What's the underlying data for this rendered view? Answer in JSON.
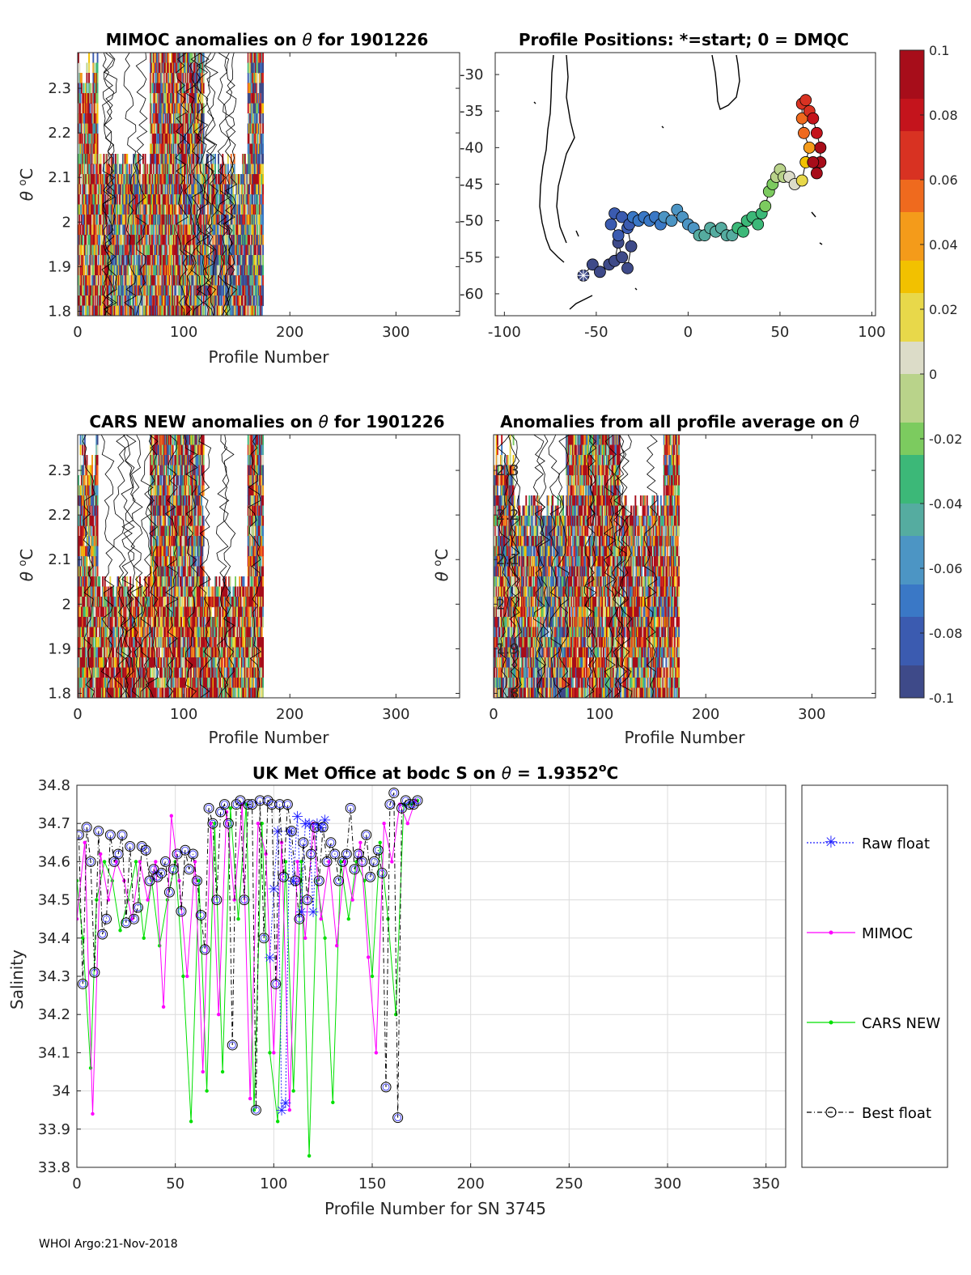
{
  "footer": "WHOI Argo:21-Nov-2018",
  "colorbar": {
    "ticks": [
      "0.1",
      "0.08",
      "0.06",
      "0.04",
      "0.02",
      "0",
      "-0.02",
      "-0.04",
      "-0.06",
      "-0.08",
      "-0.1"
    ],
    "range": [
      -0.1,
      0.1
    ],
    "stops": [
      "#3e4a89",
      "#3b5bb0",
      "#3a78c6",
      "#4c95c4",
      "#55aca0",
      "#3cb878",
      "#7ccb5f",
      "#b9d38a",
      "#dcdcc8",
      "#e8d84a",
      "#f2c100",
      "#f49b1a",
      "#ef6a1e",
      "#d83222",
      "#c4141c",
      "#a70d1a"
    ]
  },
  "chart_data": [
    {
      "id": "mimoc_anom",
      "type": "heatmap",
      "title": "MIMOC anomalies on θ  for 1901226",
      "title_parts": [
        "MIMOC anomalies on ",
        "θ",
        "  for 1901226"
      ],
      "xlabel": "Profile Number",
      "ylabel_parts": [
        "θ ",
        "o",
        "C"
      ],
      "xlim": [
        0,
        360
      ],
      "ylim": [
        1.79,
        2.38
      ],
      "xticks": [
        "0",
        "100",
        "200",
        "300"
      ],
      "yticks": [
        "1.8",
        "1.9",
        "2",
        "2.1",
        "2.2",
        "2.3"
      ],
      "profiles_with_data": [
        0,
        175
      ]
    },
    {
      "id": "positions",
      "type": "scatter",
      "title": "Profile Positions: *=start; 0 = DMQC",
      "xlim": [
        -105,
        102
      ],
      "ylim": [
        -63,
        -27
      ],
      "xticks": [
        "-100",
        "-50",
        "0",
        "50",
        "100"
      ],
      "yticks": [
        "-30",
        "-35",
        "-40",
        "-45",
        "-50",
        "-55",
        "-60"
      ],
      "track": [
        [
          -57,
          -57.5
        ],
        [
          -52,
          -56
        ],
        [
          -48,
          -57
        ],
        [
          -43,
          -56
        ],
        [
          -40,
          -55.5
        ],
        [
          -38,
          -53
        ],
        [
          -36,
          -55
        ],
        [
          -33,
          -56.5
        ],
        [
          -31,
          -53.5
        ],
        [
          -33,
          -51
        ],
        [
          -38,
          -52
        ],
        [
          -42,
          -50.5
        ],
        [
          -40,
          -49
        ],
        [
          -36,
          -49.5
        ],
        [
          -32,
          -50.5
        ],
        [
          -30,
          -49.5
        ],
        [
          -27,
          -50
        ],
        [
          -24,
          -49.5
        ],
        [
          -21,
          -50
        ],
        [
          -18,
          -49.5
        ],
        [
          -15,
          -50.5
        ],
        [
          -13,
          -49.5
        ],
        [
          -9,
          -50
        ],
        [
          -6,
          -48.5
        ],
        [
          -3,
          -49.5
        ],
        [
          0,
          -50.5
        ],
        [
          3,
          -51
        ],
        [
          6,
          -52
        ],
        [
          9,
          -52
        ],
        [
          12,
          -51
        ],
        [
          15,
          -51.5
        ],
        [
          18,
          -51
        ],
        [
          21,
          -52
        ],
        [
          24,
          -52
        ],
        [
          27,
          -51
        ],
        [
          30,
          -51.5
        ],
        [
          32,
          -50
        ],
        [
          35,
          -49.5
        ],
        [
          38,
          -50.5
        ],
        [
          40,
          -49
        ],
        [
          42,
          -48
        ],
        [
          44,
          -46
        ],
        [
          46,
          -45
        ],
        [
          48,
          -44
        ],
        [
          50,
          -43
        ],
        [
          52,
          -44
        ],
        [
          55,
          -44
        ],
        [
          58,
          -45
        ],
        [
          62,
          -44.5
        ],
        [
          64,
          -42
        ],
        [
          66,
          -40
        ],
        [
          63,
          -38
        ],
        [
          62,
          -36
        ],
        [
          62,
          -34
        ],
        [
          64,
          -33.5
        ],
        [
          66,
          -35
        ],
        [
          68,
          -36
        ],
        [
          70,
          -38
        ],
        [
          72,
          -40
        ],
        [
          72,
          -42
        ],
        [
          70,
          -43.5
        ],
        [
          68,
          -42
        ]
      ],
      "values": [
        -0.1,
        -0.098,
        -0.097,
        -0.095,
        -0.094,
        -0.092,
        -0.091,
        -0.09,
        -0.088,
        -0.087,
        -0.085,
        -0.083,
        -0.08,
        -0.078,
        -0.076,
        -0.074,
        -0.072,
        -0.07,
        -0.068,
        -0.066,
        -0.064,
        -0.062,
        -0.06,
        -0.058,
        -0.056,
        -0.055,
        -0.053,
        -0.05,
        -0.048,
        -0.046,
        -0.044,
        -0.042,
        -0.04,
        -0.038,
        -0.036,
        -0.034,
        -0.032,
        -0.03,
        -0.028,
        -0.026,
        -0.024,
        -0.02,
        -0.016,
        -0.012,
        -0.008,
        -0.004,
        0.0,
        0.01,
        0.02,
        0.03,
        0.04,
        0.05,
        0.06,
        0.065,
        0.07,
        0.075,
        0.08,
        0.085,
        0.09,
        0.094,
        0.097,
        0.1
      ],
      "start": [
        -57,
        -57.5
      ]
    },
    {
      "id": "cars_anom",
      "type": "heatmap",
      "title": "CARS NEW anomalies on θ for 1901226",
      "title_parts": [
        "CARS NEW anomalies on ",
        "θ",
        " for 1901226"
      ],
      "xlabel": "Profile Number",
      "ylabel_parts": [
        "θ ",
        "o",
        "C"
      ],
      "xlim": [
        0,
        360
      ],
      "ylim": [
        1.79,
        2.38
      ],
      "xticks": [
        "0",
        "100",
        "200",
        "300"
      ],
      "yticks": [
        "1.8",
        "1.9",
        "2",
        "2.1",
        "2.2",
        "2.3"
      ],
      "profiles_with_data": [
        0,
        175
      ]
    },
    {
      "id": "all_avg_anom",
      "type": "heatmap",
      "title": "Anomalies from all profile average on θ",
      "title_parts": [
        "Anomalies from all profile average on ",
        "θ"
      ],
      "xlabel": "Profile Number",
      "ylabel_parts": [
        "θ ",
        "o",
        "C"
      ],
      "xlim": [
        0,
        360
      ],
      "ylim": [
        1.79,
        2.38
      ],
      "xticks": [
        "0",
        "100",
        "200",
        "300"
      ],
      "yticks": [
        "1.8",
        "1.9",
        "2",
        "2.1",
        "2.2",
        "2.3"
      ],
      "profiles_with_data": [
        0,
        175
      ]
    },
    {
      "id": "salinity",
      "type": "line",
      "title": "UK Met Office at bodc S on θ = 1.9352°C",
      "title_parts": [
        "UK Met Office at bodc S on ",
        "θ",
        " = 1.9352",
        "o",
        "C"
      ],
      "xlabel": "Profile Number for SN 3745",
      "ylabel": "Salinity",
      "xlim": [
        0,
        360
      ],
      "ylim": [
        33.8,
        34.8
      ],
      "xticks": [
        "0",
        "50",
        "100",
        "150",
        "200",
        "250",
        "300",
        "350"
      ],
      "yticks": [
        "33.8",
        "33.9",
        "34",
        "34.1",
        "34.2",
        "34.3",
        "34.4",
        "34.5",
        "34.6",
        "34.7",
        "34.8"
      ],
      "legend": [
        "Raw float",
        "MIMOC",
        "CARS NEW",
        "Best float"
      ],
      "legend_position": "outside-right",
      "series": [
        {
          "name": "Best float",
          "x": [
            1,
            3,
            5,
            7,
            9,
            11,
            13,
            15,
            17,
            19,
            21,
            23,
            25,
            27,
            29,
            31,
            33,
            35,
            37,
            39,
            41,
            43,
            45,
            47,
            49,
            51,
            53,
            55,
            57,
            59,
            61,
            63,
            65,
            67,
            69,
            71,
            73,
            75,
            77,
            79,
            81,
            83,
            85,
            87,
            89,
            91,
            93,
            95,
            97,
            99,
            101,
            103,
            105,
            107,
            109,
            111,
            113,
            115,
            117,
            119,
            121,
            123,
            125,
            127,
            129,
            131,
            133,
            135,
            137,
            139,
            141,
            143,
            145,
            147,
            149,
            151,
            153,
            155,
            157,
            159,
            161,
            163,
            165,
            167,
            169,
            171,
            173
          ],
          "y": [
            34.67,
            34.28,
            34.69,
            34.6,
            34.31,
            34.68,
            34.41,
            34.45,
            34.67,
            34.6,
            34.62,
            34.67,
            34.44,
            34.64,
            34.45,
            34.48,
            34.64,
            34.63,
            34.55,
            34.58,
            34.56,
            34.57,
            34.6,
            34.52,
            34.58,
            34.62,
            34.47,
            34.63,
            34.58,
            34.62,
            34.55,
            34.46,
            34.37,
            34.74,
            34.7,
            34.5,
            34.73,
            34.75,
            34.7,
            34.12,
            34.75,
            34.76,
            34.5,
            34.75,
            34.75,
            33.95,
            34.76,
            34.4,
            34.76,
            34.75,
            34.28,
            34.75,
            34.56,
            34.75,
            34.68,
            34.55,
            34.45,
            34.65,
            34.5,
            34.62,
            34.69,
            34.55,
            34.69,
            34.6,
            34.65,
            34.62,
            34.55,
            34.6,
            34.62,
            34.74,
            34.58,
            34.62,
            34.6,
            34.67,
            34.56,
            34.6,
            34.63,
            34.57,
            34.01,
            34.75,
            34.78,
            33.93,
            34.74,
            34.76,
            34.75,
            34.75,
            34.76
          ]
        },
        {
          "name": "Raw float",
          "x": [
            98,
            100,
            102,
            104,
            106,
            108,
            110,
            112,
            114,
            116,
            118,
            120,
            122,
            124,
            126
          ],
          "y": [
            34.35,
            34.53,
            34.68,
            33.95,
            33.97,
            34.68,
            34.55,
            34.72,
            34.47,
            34.7,
            34.7,
            34.47,
            34.7,
            34.69,
            34.71
          ]
        },
        {
          "name": "MIMOC",
          "x": [
            0,
            4,
            8,
            12,
            16,
            20,
            24,
            28,
            32,
            36,
            40,
            44,
            48,
            52,
            56,
            60,
            64,
            68,
            72,
            76,
            80,
            84,
            88,
            92,
            96,
            100,
            104,
            108,
            112,
            116,
            120,
            124,
            128,
            132,
            136,
            140,
            144,
            148,
            152,
            156,
            160,
            164,
            168,
            172
          ],
          "y": [
            34.45,
            34.65,
            33.94,
            34.62,
            34.5,
            34.6,
            34.55,
            34.45,
            34.6,
            34.5,
            34.6,
            34.22,
            34.72,
            34.55,
            34.3,
            34.6,
            34.05,
            34.7,
            34.2,
            34.73,
            34.5,
            34.75,
            33.98,
            34.7,
            34.62,
            34.1,
            34.65,
            33.95,
            34.6,
            34.4,
            34.7,
            34.45,
            34.6,
            34.38,
            34.6,
            34.5,
            34.65,
            34.35,
            34.1,
            34.7,
            34.6,
            34.75,
            34.7,
            34.76
          ]
        },
        {
          "name": "CARS NEW",
          "x": [
            0,
            3,
            7,
            10,
            14,
            18,
            22,
            26,
            30,
            34,
            38,
            42,
            46,
            50,
            54,
            58,
            62,
            66,
            70,
            74,
            78,
            82,
            86,
            90,
            94,
            98,
            102,
            106,
            110,
            114,
            118,
            122,
            126,
            130,
            134,
            138,
            142,
            146,
            150,
            154,
            158,
            162,
            166,
            170,
            173
          ],
          "y": [
            34.55,
            34.4,
            34.06,
            34.5,
            34.6,
            34.55,
            34.42,
            34.5,
            34.6,
            34.4,
            34.55,
            34.38,
            34.5,
            34.6,
            34.3,
            33.92,
            34.55,
            34.0,
            34.7,
            34.05,
            34.74,
            34.45,
            34.75,
            33.95,
            34.7,
            34.1,
            33.92,
            34.6,
            34.0,
            34.6,
            33.83,
            34.55,
            34.4,
            33.97,
            34.6,
            34.45,
            34.6,
            34.55,
            34.3,
            34.65,
            34.45,
            34.2,
            34.75,
            34.75,
            34.76
          ]
        }
      ]
    }
  ]
}
